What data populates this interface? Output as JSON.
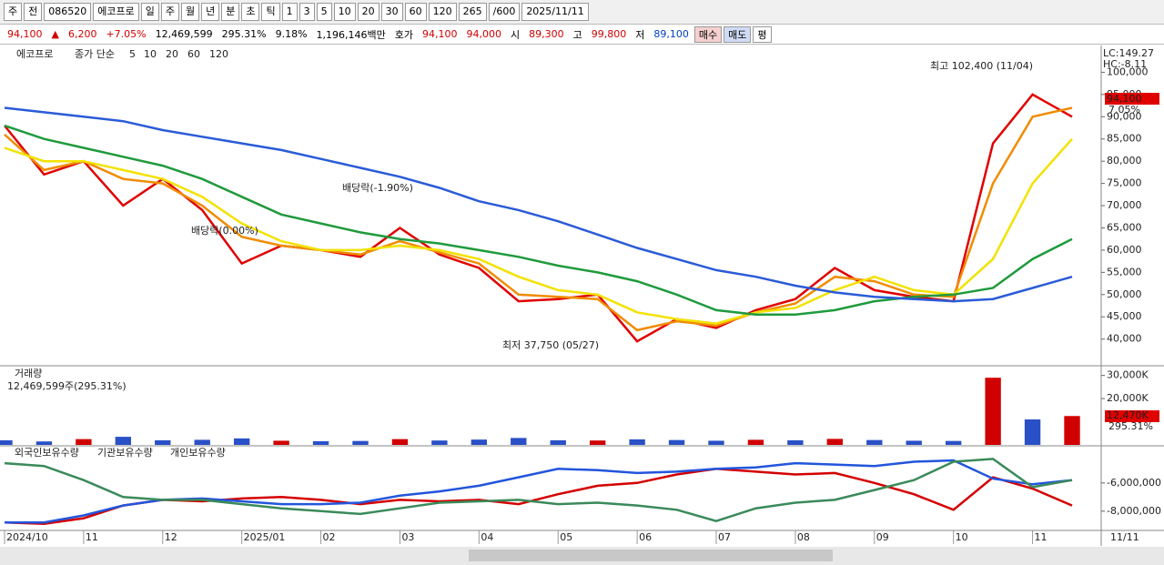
{
  "toolbar": {
    "items": [
      "주",
      "전",
      "086520",
      "에코프로",
      "일",
      "주",
      "월",
      "년",
      "분",
      "초",
      "틱",
      "1",
      "3",
      "5",
      "10",
      "20",
      "30",
      "60",
      "120",
      "265",
      "/600",
      "2025/11/11"
    ]
  },
  "info_bar": {
    "items": [
      "94,100",
      "▲",
      "6,200",
      "+7.05%",
      "12,469,599",
      "295.31%",
      "9.18%",
      "1,196,146백만",
      "호가",
      "94,100",
      "94,000",
      "시",
      "89,300",
      "고",
      "99,800",
      "저",
      "89,100",
      "매수",
      "매도",
      "평"
    ]
  },
  "chart_data": [
    {
      "type": "line",
      "title": "에코프로",
      "legend_label": "종가 단순",
      "ylim": [
        34000,
        105200
      ],
      "yticks": [
        {
          "value": 40000,
          "label": "40,000"
        },
        {
          "value": 45000,
          "label": "45,000"
        },
        {
          "value": 50000,
          "label": "50,000"
        },
        {
          "value": 55000,
          "label": "55,000"
        },
        {
          "value": 60000,
          "label": "60,000"
        },
        {
          "value": 65000,
          "label": "65,000"
        },
        {
          "value": 70000,
          "label": "70,000"
        },
        {
          "value": 75000,
          "label": "75,000"
        },
        {
          "value": 80000,
          "label": "80,000"
        },
        {
          "value": 85000,
          "label": "85,000"
        },
        {
          "value": 90000,
          "label": "90,000"
        },
        {
          "value": 95000,
          "label": "95,000"
        },
        {
          "value": 100000,
          "label": "100,000"
        }
      ],
      "grid": false,
      "annotations": [
        "최고 102,400 (11/04)",
        "최저 37,750 (05/27)",
        "배당락(-1.90%)",
        "배당락(0.00%)"
      ],
      "side_labels": [
        "LC:149.27",
        "HC:-8.11",
        "94,100",
        "7.05%"
      ],
      "series": [
        {
          "name": "5",
          "color": "#e00000",
          "values": [
            88000,
            77000,
            80000,
            70000,
            76000,
            69000,
            57000,
            61000,
            60000,
            58500,
            65000,
            59000,
            56000,
            48500,
            49000,
            50000,
            39500,
            44500,
            42500,
            46500,
            49000,
            56000,
            51000,
            49500,
            48500,
            84000,
            95000,
            90000
          ]
        },
        {
          "name": "10",
          "color": "#f08c00",
          "values": [
            86000,
            78000,
            80000,
            76000,
            75000,
            70000,
            63000,
            61000,
            60000,
            59000,
            62000,
            59500,
            57000,
            50000,
            49500,
            49000,
            42000,
            44000,
            43000,
            46000,
            48000,
            54000,
            53000,
            50000,
            49500,
            75000,
            90000,
            92000
          ]
        },
        {
          "name": "20",
          "color": "#f2e200",
          "values": [
            83000,
            80000,
            80000,
            78000,
            76000,
            72000,
            66000,
            62000,
            60000,
            60000,
            61000,
            60000,
            58000,
            54000,
            51000,
            50000,
            46000,
            44500,
            43500,
            46000,
            47000,
            51000,
            54000,
            51000,
            50000,
            58000,
            75000,
            85000
          ]
        },
        {
          "name": "60",
          "color": "#1f9a3c",
          "values": [
            88000,
            85000,
            83000,
            81000,
            79000,
            76000,
            72000,
            68000,
            66000,
            64000,
            62500,
            61500,
            60000,
            58500,
            56500,
            55000,
            53000,
            50000,
            46500,
            45500,
            45500,
            46500,
            48500,
            49500,
            50000,
            51500,
            58000,
            62500
          ]
        },
        {
          "name": "120",
          "color": "#2a5bd7",
          "values": [
            92000,
            91000,
            90000,
            89000,
            87000,
            85500,
            84000,
            82500,
            80500,
            78500,
            76500,
            74000,
            71000,
            69000,
            66500,
            63500,
            60500,
            58000,
            55500,
            54000,
            52000,
            50500,
            49500,
            49000,
            48500,
            49000,
            51500,
            54000
          ]
        }
      ]
    },
    {
      "type": "bar",
      "title": "거래량",
      "info": "12,469,599주(295.31%)",
      "side_labels": [
        "12,470K",
        "295.31%"
      ],
      "ylim": [
        0,
        33000000
      ],
      "yticks": [
        {
          "value": 20000000,
          "label": "20,000K"
        },
        {
          "value": 30000000,
          "label": "30,000K"
        }
      ],
      "values": [
        2000000,
        1500000,
        2500000,
        3500000,
        2000000,
        2200000,
        2800000,
        1800000,
        1600000,
        1700000,
        2500000,
        1900000,
        2300000,
        3000000,
        2000000,
        1900000,
        2400000,
        2100000,
        1800000,
        2200000,
        2000000,
        2600000,
        2100000,
        1800000,
        1700000,
        29000000,
        11000000,
        12469599
      ],
      "colors": [
        "#2a50c8",
        "#2a50c8",
        "#d00000",
        "#2a50c8",
        "#2a50c8",
        "#2a50c8",
        "#2a50c8",
        "#d00000",
        "#2a50c8",
        "#2a50c8",
        "#d00000",
        "#2a50c8",
        "#2a50c8",
        "#2a50c8",
        "#2a50c8",
        "#d00000",
        "#2a50c8",
        "#2a50c8",
        "#2a50c8",
        "#d00000",
        "#2a50c8",
        "#d00000",
        "#2a50c8",
        "#2a50c8",
        "#2a50c8",
        "#d00000",
        "#2a50c8",
        "#d00000"
      ]
    },
    {
      "type": "line",
      "ylim": [
        -9300000,
        -3500000
      ],
      "yticks": [
        {
          "value": -6000000,
          "label": "-6,000,000"
        },
        {
          "value": -8000000,
          "label": "-8,000,000"
        }
      ],
      "categories": [
        "2024/10",
        null,
        "11",
        null,
        "12",
        null,
        "2025/01",
        null,
        "02",
        null,
        "03",
        null,
        "04",
        null,
        "05",
        null,
        "06",
        null,
        "07",
        null,
        "08",
        null,
        "09",
        null,
        "10",
        null,
        "11",
        null
      ],
      "x_end_label": "11/11",
      "series": [
        {
          "name": "외국인보유수량",
          "color": "#d40000",
          "values": [
            -8800000,
            -8900000,
            -8500000,
            -7600000,
            -7200000,
            -7300000,
            -7100000,
            -7000000,
            -7200000,
            -7500000,
            -7200000,
            -7300000,
            -7200000,
            -7500000,
            -6800000,
            -6200000,
            -6000000,
            -5400000,
            -5000000,
            -5200000,
            -5400000,
            -5300000,
            -6000000,
            -6800000,
            -7900000,
            -5600000,
            -6400000,
            -7600000
          ]
        },
        {
          "name": "기관보유수량",
          "color": "#2255dd",
          "values": [
            -8800000,
            -8800000,
            -8300000,
            -7600000,
            -7200000,
            -7100000,
            -7300000,
            -7500000,
            -7500000,
            -7400000,
            -6900000,
            -6600000,
            -6200000,
            -5600000,
            -5000000,
            -5100000,
            -5300000,
            -5200000,
            -5000000,
            -4900000,
            -4600000,
            -4700000,
            -4800000,
            -4500000,
            -4400000,
            -5700000,
            -6100000,
            -5800000
          ]
        },
        {
          "name": "개인보유수량",
          "color": "#3a8a5a",
          "values": [
            -4600000,
            -4800000,
            -5800000,
            -7000000,
            -7200000,
            -7200000,
            -7500000,
            -7800000,
            -8000000,
            -8200000,
            -7800000,
            -7400000,
            -7300000,
            -7200000,
            -7500000,
            -7400000,
            -7600000,
            -7900000,
            -8700000,
            -7800000,
            -7400000,
            -7200000,
            -6500000,
            -5800000,
            -4500000,
            -4300000,
            -6300000,
            -5800000
          ]
        }
      ]
    }
  ]
}
